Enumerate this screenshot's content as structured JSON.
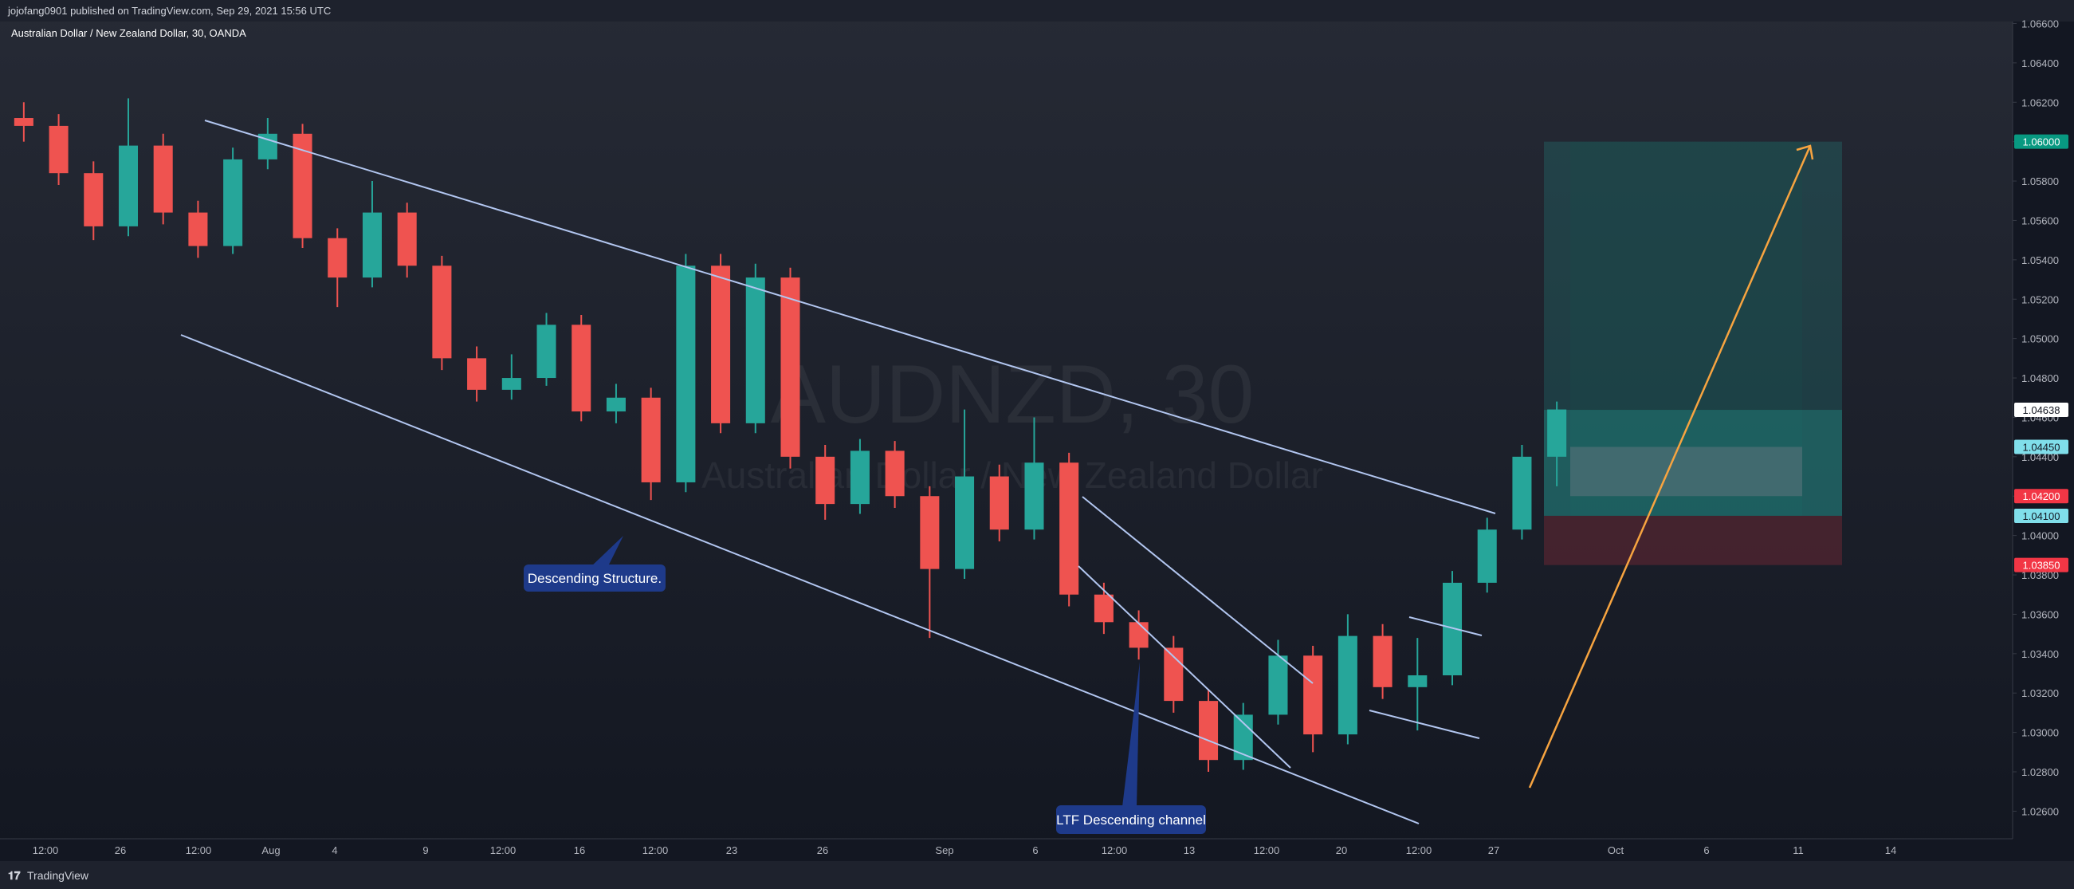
{
  "header": {
    "publisher": "jojofang0901 published on TradingView.com, Sep 29, 2021 15:56 UTC",
    "symbol": "Australian Dollar / New Zealand Dollar, 30, OANDA"
  },
  "chart_data": {
    "type": "candlestick",
    "title": "AUDNZD, 30",
    "subtitle": "Australian Dollar / New Zealand Dollar",
    "up_color": "#26a69a",
    "down_color": "#ef5350",
    "open": [
      1.0612,
      1.0608,
      1.0584,
      1.0557,
      1.0598,
      1.0564,
      1.0547,
      1.0591,
      1.0604,
      1.0551,
      1.0531,
      1.0564,
      1.0537,
      1.049,
      1.0474,
      1.048,
      1.0507,
      1.0463,
      1.047,
      1.0427,
      1.0537,
      1.0457,
      1.0531,
      1.044,
      1.0416,
      1.0443,
      1.042,
      1.0383,
      1.043,
      1.0403,
      1.0437,
      1.037,
      1.0356,
      1.0343,
      1.0316,
      1.0286,
      1.0309,
      1.0339,
      1.0299,
      1.0349,
      1.0323,
      1.0329,
      1.0376,
      1.0403,
      1.044
    ],
    "high": [
      1.062,
      1.0614,
      1.059,
      1.0622,
      1.0604,
      1.057,
      1.0597,
      1.0612,
      1.0609,
      1.0556,
      1.058,
      1.0569,
      1.0542,
      1.0496,
      1.0492,
      1.0513,
      1.0512,
      1.0477,
      1.0475,
      1.0543,
      1.0543,
      1.0538,
      1.0536,
      1.0446,
      1.0449,
      1.0448,
      1.0425,
      1.0464,
      1.0436,
      1.046,
      1.0442,
      1.0376,
      1.0362,
      1.0349,
      1.0322,
      1.0315,
      1.0347,
      1.0344,
      1.036,
      1.0355,
      1.0348,
      1.0382,
      1.0409,
      1.0446,
      1.0468
    ],
    "low": [
      1.06,
      1.0578,
      1.055,
      1.0552,
      1.0558,
      1.0541,
      1.0543,
      1.0586,
      1.0546,
      1.0516,
      1.0526,
      1.0531,
      1.0484,
      1.0468,
      1.0469,
      1.0476,
      1.0458,
      1.0457,
      1.0418,
      1.0422,
      1.0452,
      1.0452,
      1.0434,
      1.0408,
      1.0411,
      1.0414,
      1.0348,
      1.0378,
      1.0397,
      1.0398,
      1.0364,
      1.035,
      1.0337,
      1.031,
      1.028,
      1.0281,
      1.0304,
      1.029,
      1.0294,
      1.0317,
      1.0301,
      1.0324,
      1.0371,
      1.0398,
      1.0425
    ],
    "close": [
      1.0608,
      1.0584,
      1.0557,
      1.0598,
      1.0564,
      1.0547,
      1.0591,
      1.0604,
      1.0551,
      1.0531,
      1.0564,
      1.0537,
      1.049,
      1.0474,
      1.048,
      1.0507,
      1.0463,
      1.047,
      1.0427,
      1.0537,
      1.0457,
      1.0531,
      1.044,
      1.0416,
      1.0443,
      1.042,
      1.0383,
      1.043,
      1.0403,
      1.0437,
      1.037,
      1.0356,
      1.0343,
      1.0316,
      1.0286,
      1.0309,
      1.0339,
      1.0299,
      1.0349,
      1.0323,
      1.0329,
      1.0376,
      1.0403,
      1.044,
      1.0464
    ],
    "ylim": [
      1.0246,
      1.0661
    ],
    "yticks": [
      {
        "value": 1.026,
        "label": "1.02600"
      },
      {
        "value": 1.028,
        "label": "1.02800"
      },
      {
        "value": 1.03,
        "label": "1.03000"
      },
      {
        "value": 1.032,
        "label": "1.03200"
      },
      {
        "value": 1.034,
        "label": "1.03400"
      },
      {
        "value": 1.036,
        "label": "1.03600"
      },
      {
        "value": 1.038,
        "label": "1.03800"
      },
      {
        "value": 1.04,
        "label": "1.04000"
      },
      {
        "value": 1.042,
        "label": "1.04200"
      },
      {
        "value": 1.044,
        "label": "1.04400"
      },
      {
        "value": 1.046,
        "label": "1.04600"
      },
      {
        "value": 1.048,
        "label": "1.04800"
      },
      {
        "value": 1.05,
        "label": "1.05000"
      },
      {
        "value": 1.052,
        "label": "1.05200"
      },
      {
        "value": 1.054,
        "label": "1.05400"
      },
      {
        "value": 1.056,
        "label": "1.05600"
      },
      {
        "value": 1.058,
        "label": "1.05800"
      },
      {
        "value": 1.06,
        "label": "1.06000"
      },
      {
        "value": 1.062,
        "label": "1.06200"
      },
      {
        "value": 1.064,
        "label": "1.06400"
      },
      {
        "value": 1.066,
        "label": "1.06600"
      }
    ],
    "grid": false,
    "x_labels": [
      "12:00",
      "26",
      "12:00",
      "Aug",
      "4",
      "9",
      "12:00",
      "16",
      "12:00",
      "23",
      "26",
      "Sep",
      "6",
      "12:00",
      "13",
      "12:00",
      "20",
      "12:00",
      "27",
      "Oct",
      "6",
      "11",
      "14"
    ],
    "price_tags": [
      {
        "value": 1.06,
        "label": "1.06000",
        "color": "#089981",
        "text_color": "#ffffff"
      },
      {
        "value": 1.04638,
        "label": "1.04638",
        "color": "#ffffff",
        "text_color": "#131722"
      },
      {
        "value": 1.0445,
        "label": "1.04450",
        "color": "#80deea",
        "text_color": "#131722"
      },
      {
        "value": 1.042,
        "label": "1.04200",
        "color": "#f23645",
        "text_color": "#ffffff"
      },
      {
        "value": 1.041,
        "label": "1.04100",
        "color": "#80deea",
        "text_color": "#131722"
      },
      {
        "value": 1.0385,
        "label": "1.03850",
        "color": "#f23645",
        "text_color": "#ffffff"
      }
    ],
    "annotations": [
      "Descending Structure.",
      "LTF Descending channel"
    ]
  },
  "footer": {
    "brand": "TradingView"
  }
}
